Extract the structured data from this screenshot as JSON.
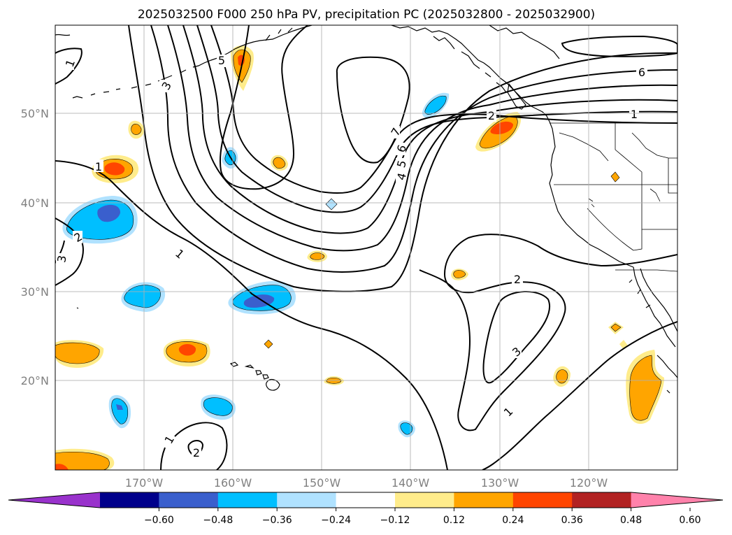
{
  "title": "2025032500 F000 250 hPa PV, precipitation PC (2025032800 - 2025032900)",
  "map": {
    "lon_labels": [
      "170°W",
      "160°W",
      "150°W",
      "140°W",
      "130°W",
      "120°W"
    ],
    "lat_labels": [
      "50°N",
      "40°N",
      "30°N",
      "20°N"
    ],
    "gridlines": true
  },
  "colorbar": {
    "colors": [
      "#9932cc",
      "#00008b",
      "#3a5fcd",
      "#00bfff",
      "#b0e2ff",
      "#ffffff",
      "#ffec8b",
      "#ffa500",
      "#ff4500",
      "#b22222",
      "#ff82ab"
    ],
    "tick_labels": [
      "−0.60",
      "−0.48",
      "−0.36",
      "−0.24",
      "−0.12",
      "0.12",
      "0.24",
      "0.36",
      "0.48",
      "0.60"
    ],
    "extend": "both"
  },
  "pv_contour_labels": [
    "1",
    "2",
    "3",
    "4",
    "5",
    "6",
    "7"
  ],
  "contour_label_text": {
    "one": "1",
    "two": "2",
    "three": "3",
    "four": "4",
    "five": "5",
    "six": "6",
    "seven": "7"
  }
}
